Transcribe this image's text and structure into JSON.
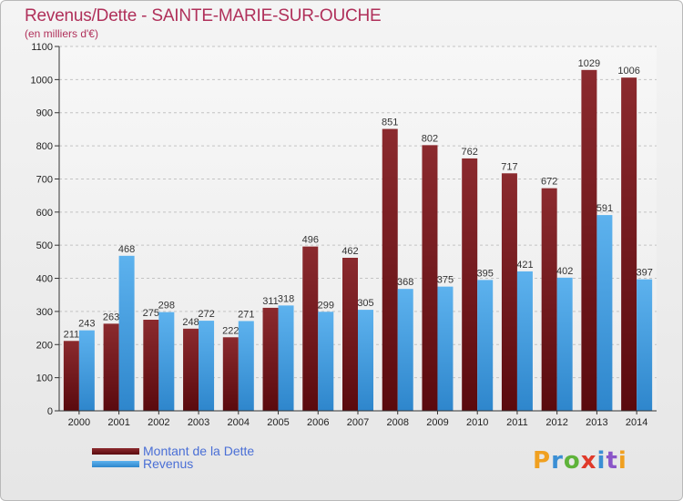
{
  "title": "Revenus/Dette - SAINTE-MARIE-SUR-OUCHE",
  "subtitle": "(en milliers d'€)",
  "logo": {
    "letters": [
      "P",
      "r",
      "o",
      "x",
      "i",
      "t",
      "i"
    ],
    "colors": [
      "#f0a020",
      "#3b8fd4",
      "#5fb33a",
      "#e03a2a",
      "#3b8fd4",
      "#8a55c8",
      "#f0a020"
    ]
  },
  "colors": {
    "dette": "#7a1a1e",
    "revenus": "#4aa3e3",
    "title": "#b0305a",
    "legend_text": "#4a6fd6"
  },
  "chart_data": {
    "type": "bar",
    "categories": [
      "2000",
      "2001",
      "2002",
      "2003",
      "2004",
      "2005",
      "2006",
      "2007",
      "2008",
      "2009",
      "2010",
      "2011",
      "2012",
      "2013",
      "2014"
    ],
    "series": [
      {
        "name": "Montant de la Dette",
        "values": [
          211,
          263,
          275,
          248,
          222,
          311,
          496,
          462,
          851,
          802,
          762,
          717,
          672,
          1029,
          1006
        ]
      },
      {
        "name": "Revenus",
        "values": [
          243,
          468,
          298,
          272,
          271,
          318,
          299,
          305,
          368,
          375,
          395,
          421,
          402,
          591,
          397
        ]
      }
    ],
    "yticks": [
      0,
      100,
      200,
      300,
      400,
      500,
      600,
      700,
      800,
      900,
      1000,
      1100
    ],
    "ylim": [
      0,
      1100
    ],
    "grid": true,
    "legend": "bottom-left"
  }
}
